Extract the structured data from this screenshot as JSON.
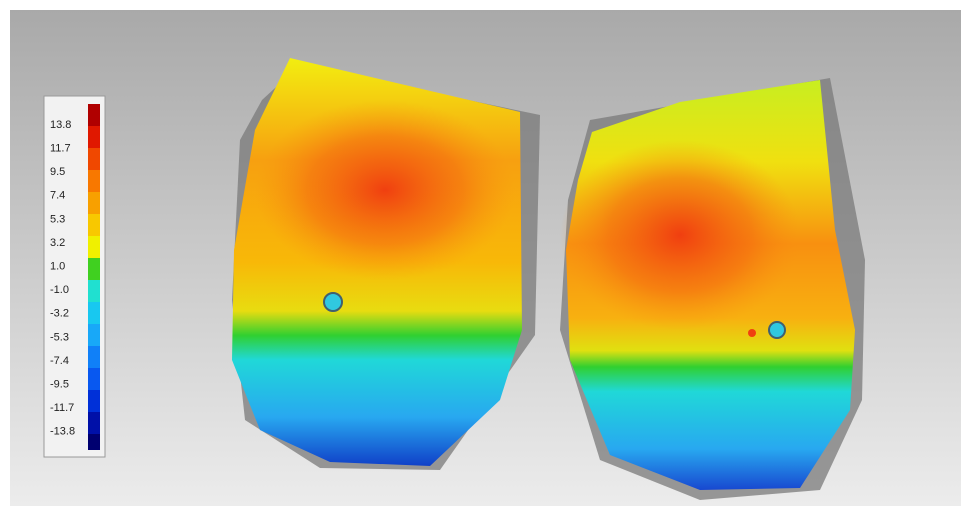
{
  "legend": {
    "labels": [
      "13.8",
      "11.7",
      "9.5",
      "7.4",
      "5.3",
      "3.2",
      "1.0",
      "-1.0",
      "-3.2",
      "-5.3",
      "-7.4",
      "-9.5",
      "-11.7",
      "-13.8"
    ]
  }
}
